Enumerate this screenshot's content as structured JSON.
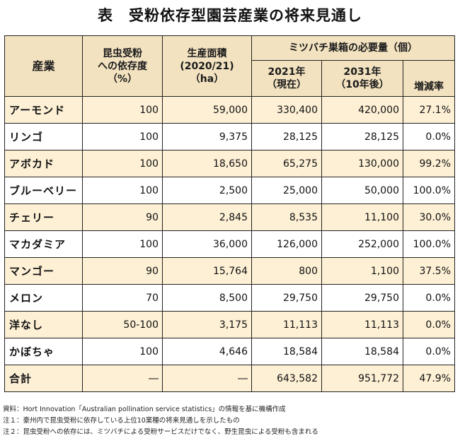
{
  "title": "表　受粉依存型園芸産業の将来見通し",
  "headers": {
    "industry": "産業",
    "dependency": [
      "昆虫受粉",
      "への依存度",
      "（%）"
    ],
    "area": [
      "生産面積",
      "(2020/21)",
      "（ha）"
    ],
    "boxes": "ミツバチ巣箱の必要量（個）",
    "y2021": [
      "2021年",
      "（現在）"
    ],
    "y2031": [
      "2031年",
      "（10年後）"
    ],
    "change": "増減率"
  },
  "rows": [
    {
      "name": "アーモンド",
      "dependency": "100",
      "area": "59,000",
      "y2021": "330,400",
      "y2031": "420,000",
      "change": "27.1%"
    },
    {
      "name": "リンゴ",
      "dependency": "100",
      "area": "9,375",
      "y2021": "28,125",
      "y2031": "28,125",
      "change": "0.0%"
    },
    {
      "name": "アボカド",
      "dependency": "100",
      "area": "18,650",
      "y2021": "65,275",
      "y2031": "130,000",
      "change": "99.2%"
    },
    {
      "name": "ブルーベリー",
      "dependency": "100",
      "area": "2,500",
      "y2021": "25,000",
      "y2031": "50,000",
      "change": "100.0%"
    },
    {
      "name": "チェリー",
      "dependency": "90",
      "area": "2,845",
      "y2021": "8,535",
      "y2031": "11,100",
      "change": "30.0%"
    },
    {
      "name": "マカダミア",
      "dependency": "100",
      "area": "36,000",
      "y2021": "126,000",
      "y2031": "252,000",
      "change": "100.0%"
    },
    {
      "name": "マンゴー",
      "dependency": "90",
      "area": "15,764",
      "y2021": "800",
      "y2031": "1,100",
      "change": "37.5%"
    },
    {
      "name": "メロン",
      "dependency": "70",
      "area": "8,500",
      "y2021": "29,750",
      "y2031": "29,750",
      "change": "0.0%"
    },
    {
      "name": "洋なし",
      "dependency": "50-100",
      "area": "3,175",
      "y2021": "11,113",
      "y2031": "11,113",
      "change": "0.0%"
    },
    {
      "name": "かぼちゃ",
      "dependency": "100",
      "area": "4,646",
      "y2021": "18,584",
      "y2031": "18,584",
      "change": "0.0%"
    },
    {
      "name": "合計",
      "dependency": "―",
      "area": "―",
      "y2021": "643,582",
      "y2031": "951,772",
      "change": "47.9%"
    }
  ],
  "notes": [
    "資料：Hort Innovation「Australian pollination service statistics」の情報を基に機構作成",
    "注１：豪州内で昆虫受粉に依存している上位10業種の将来見通しを示したもの",
    "注２：昆虫受粉への依存には、ミツバチによる受粉サービスだけでなく、野生昆虫による受粉も含まれる"
  ]
}
